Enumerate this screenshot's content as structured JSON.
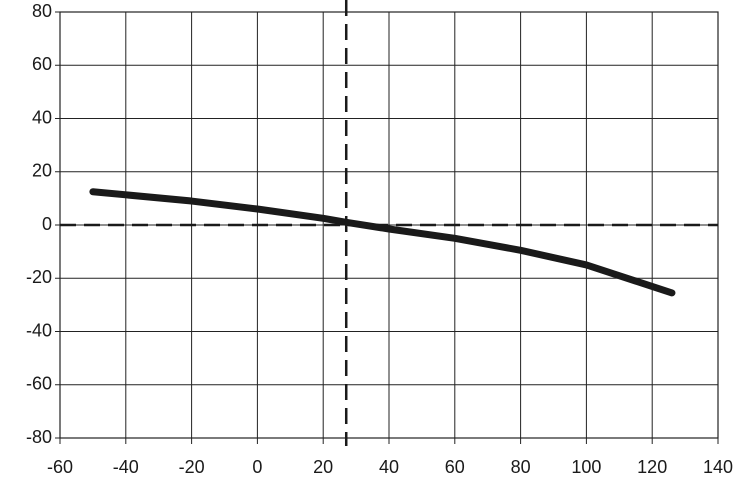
{
  "chart_data": {
    "type": "line",
    "x": [
      -50,
      -20,
      0,
      20,
      27,
      40,
      60,
      80,
      100,
      126
    ],
    "series": [
      {
        "color": "#1a1a1a",
        "values": [
          12.5,
          9,
          6,
          2.5,
          1,
          -1.5,
          -5,
          -9.5,
          -15,
          -25.5
        ]
      }
    ],
    "xlim": [
      -60,
      140
    ],
    "xticks": [
      -60,
      -40,
      -20,
      0,
      20,
      40,
      60,
      80,
      100,
      120,
      140
    ],
    "ylim": [
      -80,
      80
    ],
    "yticks": [
      -80,
      -60,
      -40,
      -20,
      0,
      20,
      40,
      60,
      80
    ],
    "grid": true,
    "reference_lines": {
      "x": 27,
      "y": 0
    }
  }
}
